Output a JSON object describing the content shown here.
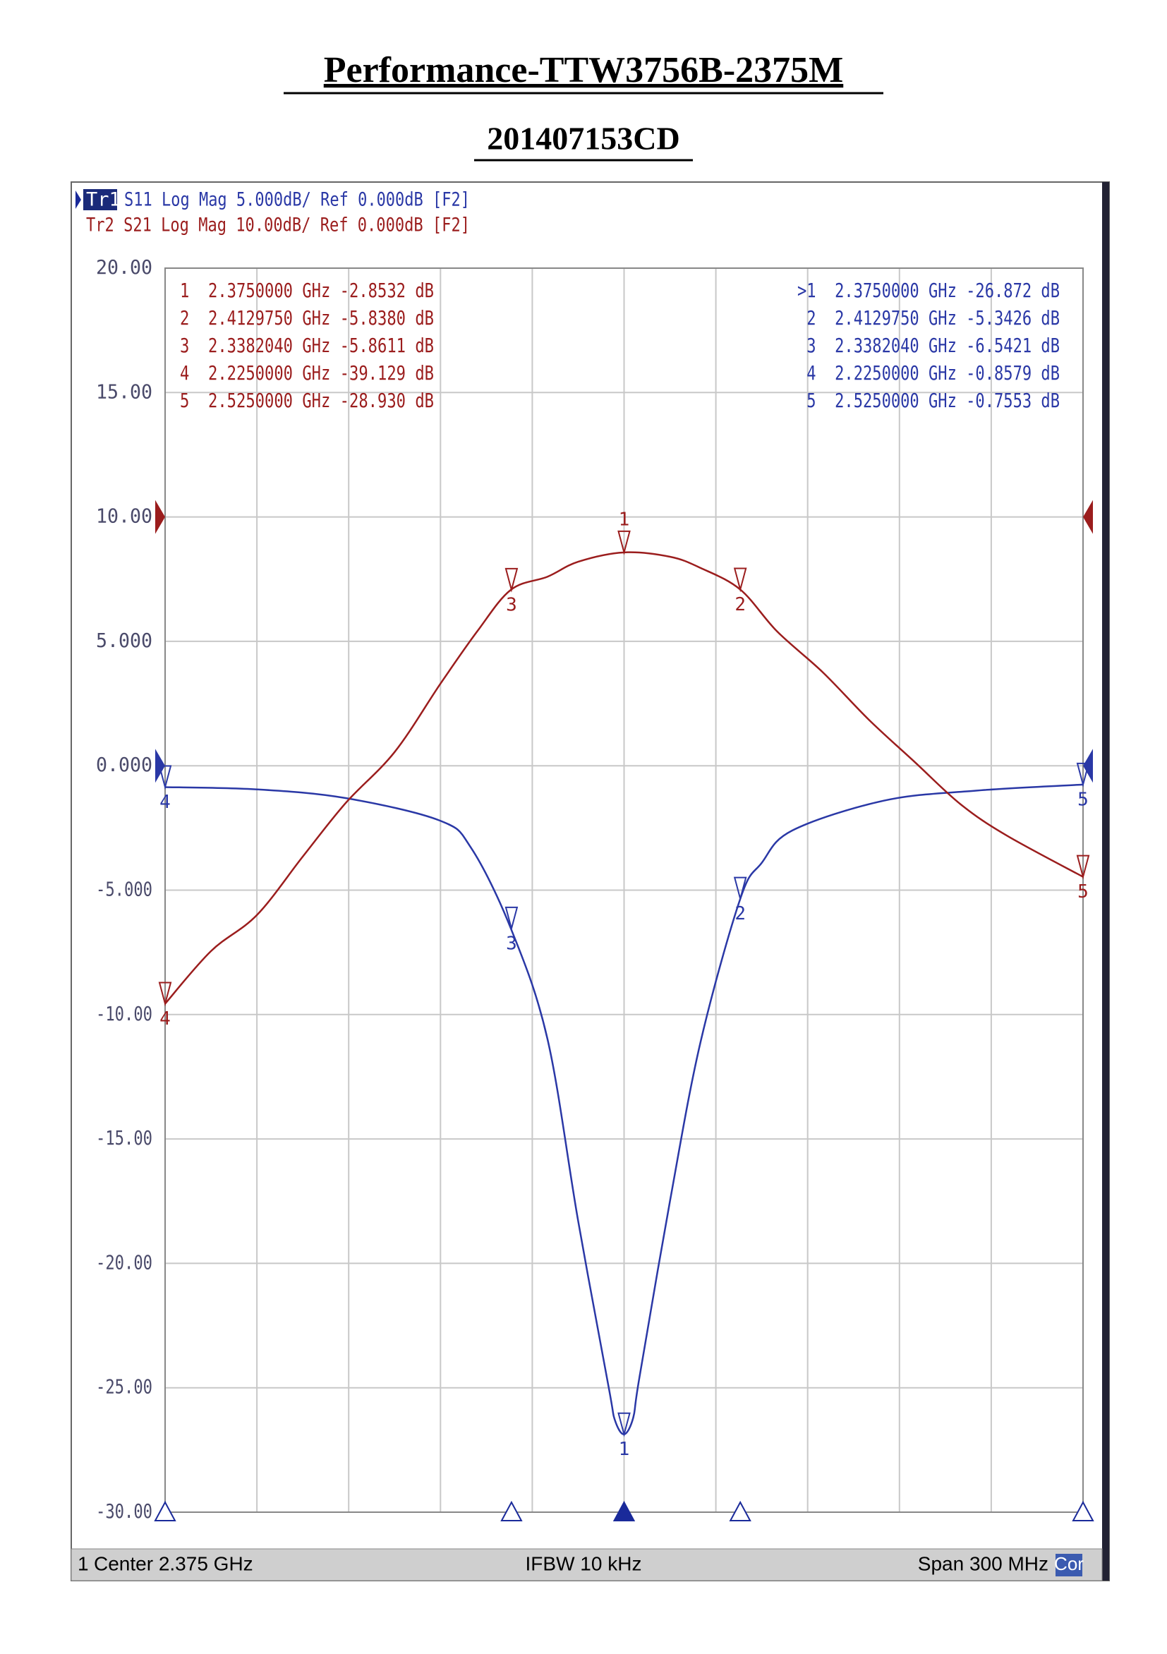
{
  "chart_data": {
    "type": "line",
    "title": "Performance-TTW3756B-2375M",
    "subtitle": "201407153CD",
    "header": [
      "Tr1",
      "S11 Log Mag 5.000dB/ Ref 0.000dB [F2]",
      "Tr2 S21 Log Mag 10.00dB/ Ref 0.000dB [F2]"
    ],
    "footer": [
      "1",
      "Center 2.375 GHz",
      "IFBW 10 kHz",
      "Span 300 MHz",
      "Cor"
    ],
    "xlim": [
      2.225,
      2.525
    ],
    "ylim": [
      -30,
      20
    ],
    "yticks": [
      {
        "value": 20,
        "label": "20.00"
      },
      {
        "value": 15,
        "label": "15.00"
      },
      {
        "value": 10,
        "label": "10.00"
      },
      {
        "value": 5,
        "label": "5.000"
      },
      {
        "value": 0,
        "label": "0.000"
      },
      {
        "value": -5,
        "label": "-5.000"
      },
      {
        "value": -10,
        "label": "-10.00"
      },
      {
        "value": -15,
        "label": "-15.00"
      },
      {
        "value": -20,
        "label": "-20.00"
      },
      {
        "value": -25,
        "label": "-25.00"
      },
      {
        "value": -30,
        "label": "-30.00"
      }
    ],
    "y2lim": [
      -80,
      20
    ],
    "grid": true,
    "series": [
      {
        "name": "S11",
        "color": "#2a38a6",
        "axis": "y",
        "x": [
          2.225,
          2.255,
          2.284,
          2.3147,
          2.325,
          2.338,
          2.35,
          2.36,
          2.37,
          2.372,
          2.375,
          2.378,
          2.38,
          2.39,
          2.4,
          2.413,
          2.42,
          2.43,
          2.46,
          2.49,
          2.525
        ],
        "values": [
          -0.858,
          -0.95,
          -1.3,
          -2.2,
          -3.3,
          -6.54,
          -11,
          -18.3,
          -25,
          -26.3,
          -26.87,
          -26.2,
          -24.6,
          -17.5,
          -11.1,
          -5.34,
          -3.9,
          -2.6,
          -1.4,
          -1.0,
          -0.755
        ],
        "markers": [
          {
            "label": "1",
            "x": 2.375,
            "value": -26.872
          },
          {
            "label": "2",
            "x": 2.412975,
            "value": -5.3426
          },
          {
            "label": "3",
            "x": 2.338204,
            "value": -6.5421
          },
          {
            "label": "4",
            "x": 2.225,
            "value": -0.8579
          },
          {
            "label": "5",
            "x": 2.525,
            "value": -0.7553
          }
        ],
        "marker_table": [
          ">1  2.3750000 GHz -26.872 dB",
          " 2  2.4129750 GHz -5.3426 dB",
          " 3  2.3382040 GHz -6.5421 dB",
          " 4  2.2250000 GHz -0.8579 dB",
          " 5  2.5250000 GHz -0.7553 dB"
        ]
      },
      {
        "name": "S21",
        "color": "#9b1d1d",
        "axis": "y2",
        "x": [
          2.225,
          2.24,
          2.255,
          2.27,
          2.284,
          2.3,
          2.315,
          2.327,
          2.338,
          2.35,
          2.36,
          2.375,
          2.39,
          2.4,
          2.413,
          2.425,
          2.44,
          2.455,
          2.47,
          2.485,
          2.5,
          2.525
        ],
        "values": [
          -39.13,
          -34.9,
          -32,
          -27.3,
          -23,
          -18.9,
          -13.4,
          -9.2,
          -5.86,
          -4.8,
          -3.6,
          -2.85,
          -3.2,
          -4.1,
          -5.84,
          -9.2,
          -12.5,
          -16.3,
          -19.7,
          -23.1,
          -25.6,
          -28.93
        ],
        "markers": [
          {
            "label": "1",
            "x": 2.375,
            "value": -2.8532
          },
          {
            "label": "2",
            "x": 2.412975,
            "value": -5.838
          },
          {
            "label": "3",
            "x": 2.338204,
            "value": -5.8611
          },
          {
            "label": "4",
            "x": 2.225,
            "value": -39.129
          },
          {
            "label": "5",
            "x": 2.525,
            "value": -28.93
          }
        ],
        "marker_table": [
          "1  2.3750000 GHz -2.8532 dB",
          "2  2.4129750 GHz -5.8380 dB",
          "3  2.3382040 GHz -5.8611 dB",
          "4  2.2250000 GHz -39.129 dB",
          "5  2.5250000 GHz -28.930 dB"
        ]
      }
    ]
  }
}
